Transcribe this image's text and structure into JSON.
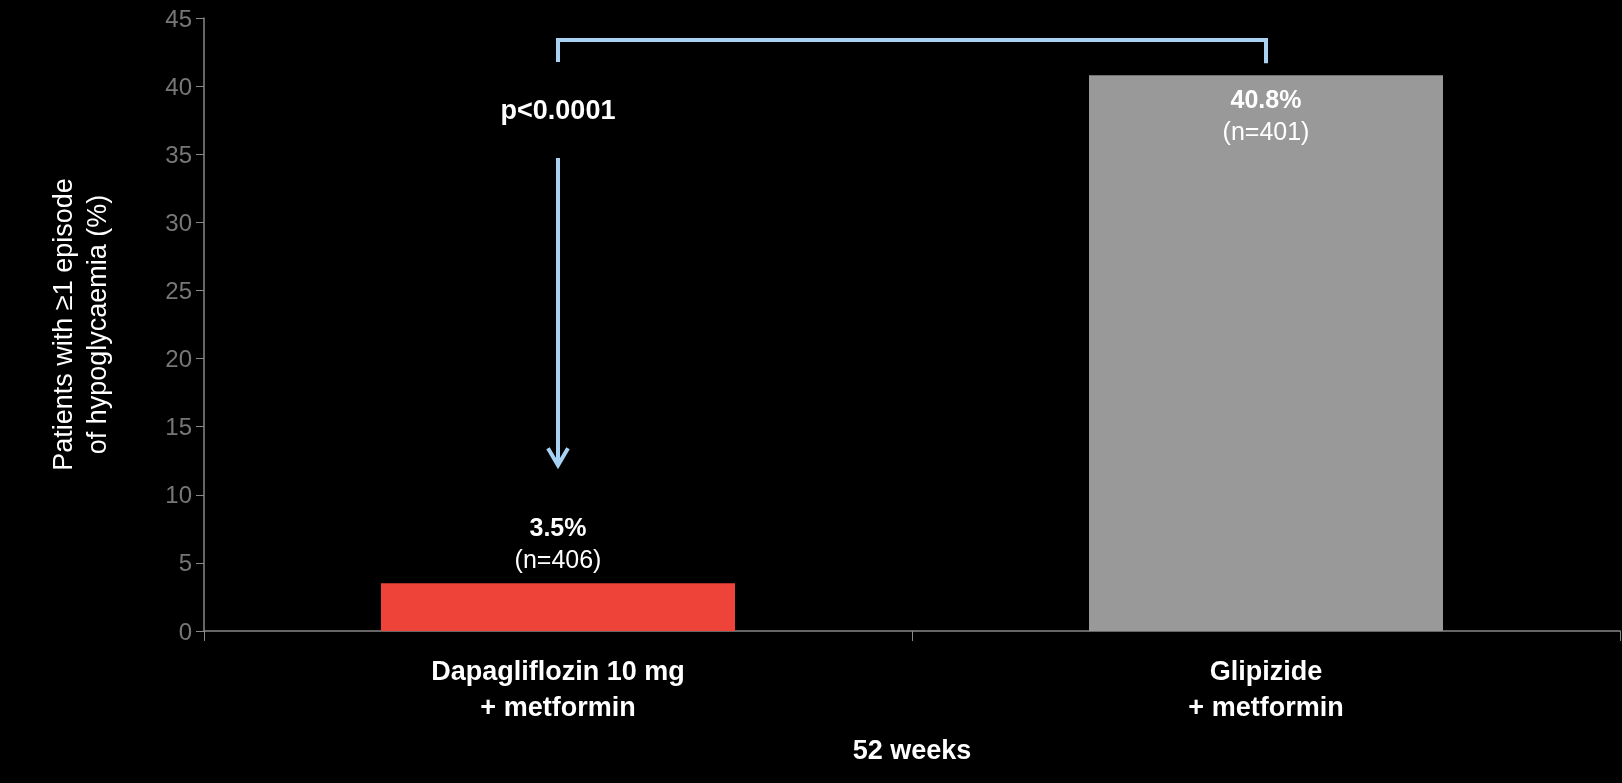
{
  "chart_data": {
    "type": "bar",
    "ylabel": "Patients with ≥1 episode\nof hypoglycaemia (%)",
    "xlabel": "52 weeks",
    "categories": [
      "Dapagliflozin 10 mg\n+ metformin",
      "Glipizide\n+ metformin"
    ],
    "values": [
      3.5,
      40.8
    ],
    "colors": [
      "#ee4339",
      "#999999"
    ],
    "value_labels": [
      "3.5%\n(n=406)",
      "40.8%\n(n=401)"
    ],
    "ylim": [
      0,
      45
    ],
    "yticks": [
      0,
      5,
      10,
      15,
      20,
      25,
      30,
      35,
      40,
      45
    ],
    "grid": false,
    "annotations": [
      "p<0.0001"
    ]
  }
}
